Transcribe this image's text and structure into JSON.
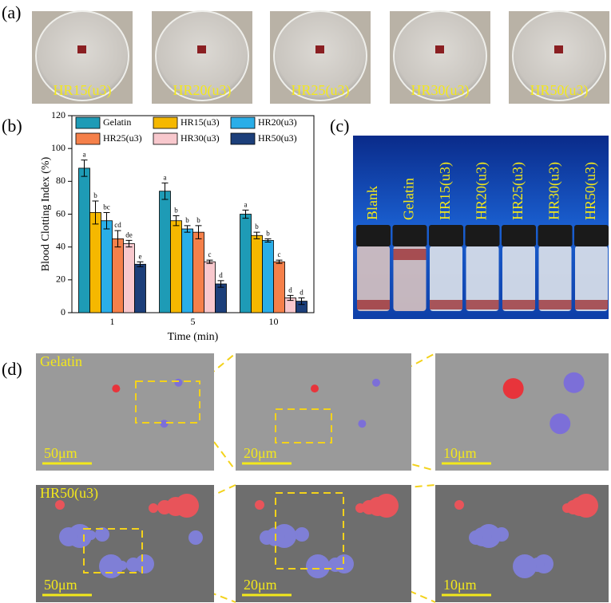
{
  "panels": {
    "a": {
      "label": "(a)",
      "photos": [
        "HR15(u3)",
        "HR20(u3)",
        "HR25(u3)",
        "HR30(u3)",
        "HR50(u3)"
      ]
    },
    "c": {
      "label": "(c)",
      "vials": [
        "Blank",
        "Gelatin",
        "HR15(u3)",
        "HR20(u3)",
        "HR25(u3)",
        "HR30(u3)",
        "HR50(u3)"
      ]
    },
    "d": {
      "label": "(d)",
      "rows": [
        {
          "sample": "Gelatin",
          "scales": [
            "50μm",
            "20μm",
            "10μm"
          ]
        },
        {
          "sample": "HR50(u3)",
          "scales": [
            "50μm",
            "20μm",
            "10μm"
          ]
        }
      ]
    }
  },
  "chart_data": {
    "type": "bar",
    "label": "(b)",
    "ylabel": "Blood Clotting Index (%)",
    "xlabel": "Time (min)",
    "categories": [
      "1",
      "5",
      "10"
    ],
    "ylim": [
      0,
      120
    ],
    "yticks": [
      0,
      20,
      40,
      60,
      80,
      100,
      120
    ],
    "series": [
      {
        "name": "Gelatin",
        "color": "#1e9bb6",
        "values": [
          88,
          74,
          60
        ],
        "errors": [
          5,
          5,
          2.5
        ],
        "letters": [
          "a",
          "a",
          "a"
        ]
      },
      {
        "name": "HR15(u3)",
        "color": "#f5b800",
        "values": [
          61,
          56,
          47
        ],
        "errors": [
          7,
          3,
          2
        ],
        "letters": [
          "b",
          "b",
          "b"
        ]
      },
      {
        "name": "HR20(u3)",
        "color": "#2aaee8",
        "values": [
          56,
          51,
          44
        ],
        "errors": [
          5,
          2,
          1
        ],
        "letters": [
          "bc",
          "b",
          "b"
        ]
      },
      {
        "name": "HR25(u3)",
        "color": "#f5804a",
        "values": [
          45,
          49,
          31
        ],
        "errors": [
          5,
          4,
          1
        ],
        "letters": [
          "cd",
          "b",
          "c"
        ]
      },
      {
        "name": "HR30(u3)",
        "color": "#f8c8cd",
        "values": [
          42,
          31,
          9
        ],
        "errors": [
          2,
          1,
          1.5
        ],
        "letters": [
          "de",
          "c",
          "d"
        ]
      },
      {
        "name": "HR50(u3)",
        "color": "#1c3f7a",
        "values": [
          29.5,
          17.5,
          7
        ],
        "errors": [
          1.5,
          2,
          2
        ],
        "letters": [
          "e",
          "d",
          "d"
        ]
      }
    ]
  }
}
